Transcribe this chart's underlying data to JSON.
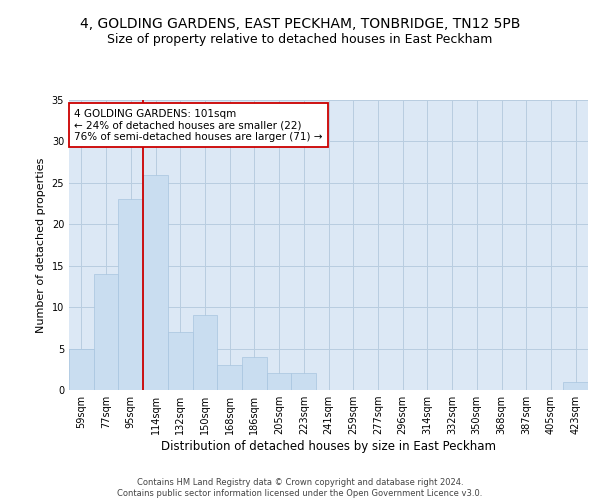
{
  "title1": "4, GOLDING GARDENS, EAST PECKHAM, TONBRIDGE, TN12 5PB",
  "title2": "Size of property relative to detached houses in East Peckham",
  "xlabel": "Distribution of detached houses by size in East Peckham",
  "ylabel": "Number of detached properties",
  "bin_labels": [
    "59sqm",
    "77sqm",
    "95sqm",
    "114sqm",
    "132sqm",
    "150sqm",
    "168sqm",
    "186sqm",
    "205sqm",
    "223sqm",
    "241sqm",
    "259sqm",
    "277sqm",
    "296sqm",
    "314sqm",
    "332sqm",
    "350sqm",
    "368sqm",
    "387sqm",
    "405sqm",
    "423sqm"
  ],
  "bar_values": [
    5,
    14,
    23,
    26,
    7,
    9,
    3,
    4,
    2,
    2,
    0,
    0,
    0,
    0,
    0,
    0,
    0,
    0,
    0,
    0,
    1
  ],
  "bar_color": "#c9ddf0",
  "bar_edge_color": "#a8c4df",
  "grid_color": "#b8cde0",
  "background_color": "#dce8f5",
  "vline_x": 2.5,
  "vline_color": "#cc0000",
  "annotation_text": "4 GOLDING GARDENS: 101sqm\n← 24% of detached houses are smaller (22)\n76% of semi-detached houses are larger (71) →",
  "annotation_box_color": "#ffffff",
  "annotation_box_edge": "#cc0000",
  "ylim": [
    0,
    35
  ],
  "yticks": [
    0,
    5,
    10,
    15,
    20,
    25,
    30,
    35
  ],
  "footer": "Contains HM Land Registry data © Crown copyright and database right 2024.\nContains public sector information licensed under the Open Government Licence v3.0.",
  "title1_fontsize": 10,
  "title2_fontsize": 9,
  "xlabel_fontsize": 8.5,
  "ylabel_fontsize": 8,
  "tick_fontsize": 7,
  "annotation_fontsize": 7.5,
  "footer_fontsize": 6
}
